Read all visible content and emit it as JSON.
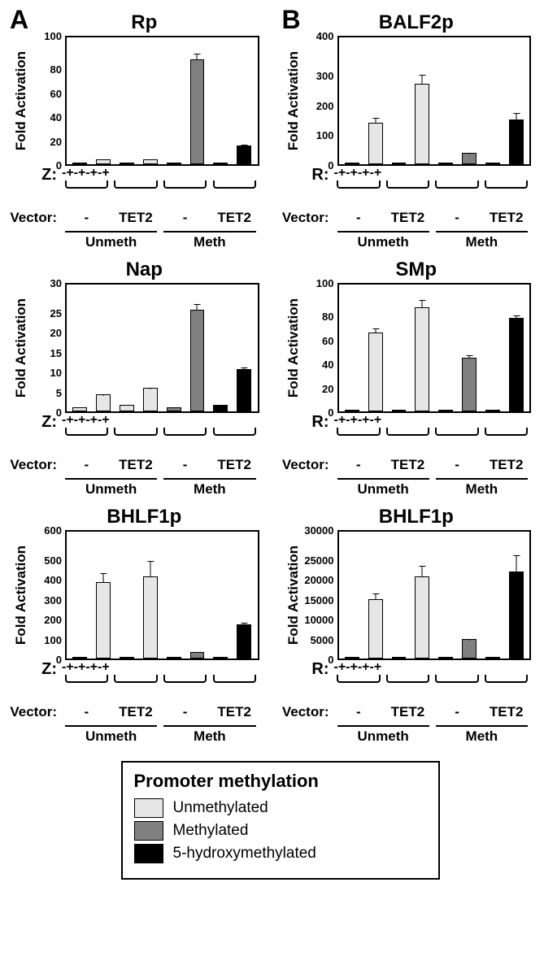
{
  "colors": {
    "unmeth": "#e6e6e6",
    "meth": "#808080",
    "hmc": "#000000",
    "border": "#000000",
    "bg": "#ffffff"
  },
  "legend": {
    "title": "Promoter methylation",
    "items": [
      {
        "label": "Unmethylated",
        "color_key": "unmeth"
      },
      {
        "label": "Methylated",
        "color_key": "meth"
      },
      {
        "label": "5-hydroxymethylated",
        "color_key": "hmc"
      }
    ]
  },
  "panel_labels": {
    "A": "A",
    "B": "B"
  },
  "axis_common": {
    "ylabel": "Fold Activation",
    "vector_label": "Vector:",
    "vector_levels": [
      "-",
      "TET2",
      "-",
      "TET2"
    ],
    "meth_levels": [
      "Unmeth",
      "Meth"
    ]
  },
  "charts": {
    "A": [
      {
        "title": "Rp",
        "stim_label": "Z:",
        "ymax": 100,
        "ticks": [
          100,
          80,
          60,
          40,
          20,
          0
        ],
        "bars": [
          {
            "v": 1,
            "e": 0.3,
            "c": "unmeth",
            "s": "-"
          },
          {
            "v": 4,
            "e": 0.5,
            "c": "unmeth",
            "s": "+"
          },
          {
            "v": 1,
            "e": 0.3,
            "c": "unmeth",
            "s": "-"
          },
          {
            "v": 4,
            "e": 0.5,
            "c": "unmeth",
            "s": "+"
          },
          {
            "v": 1,
            "e": 0.3,
            "c": "meth",
            "s": "-"
          },
          {
            "v": 83,
            "e": 5,
            "c": "meth",
            "s": "+"
          },
          {
            "v": 1,
            "e": 0.3,
            "c": "hmc",
            "s": "-"
          },
          {
            "v": 15,
            "e": 2,
            "c": "hmc",
            "s": "+"
          }
        ]
      },
      {
        "title": "Nap",
        "stim_label": "Z:",
        "ymax": 30,
        "ticks": [
          30,
          25,
          20,
          15,
          10,
          5,
          0
        ],
        "bars": [
          {
            "v": 1,
            "e": 0.3,
            "c": "unmeth",
            "s": "-"
          },
          {
            "v": 4,
            "e": 0.7,
            "c": "unmeth",
            "s": "+"
          },
          {
            "v": 1.5,
            "e": 0.3,
            "c": "unmeth",
            "s": "-"
          },
          {
            "v": 5.5,
            "e": 0.4,
            "c": "unmeth",
            "s": "+"
          },
          {
            "v": 1,
            "e": 0.3,
            "c": "meth",
            "s": "-"
          },
          {
            "v": 24,
            "e": 1.8,
            "c": "meth",
            "s": "+"
          },
          {
            "v": 1.5,
            "e": 0.3,
            "c": "hmc",
            "s": "-"
          },
          {
            "v": 10,
            "e": 1.2,
            "c": "hmc",
            "s": "+"
          }
        ]
      },
      {
        "title": "BHLF1p",
        "stim_label": "Z:",
        "ymax": 600,
        "ticks": [
          600,
          500,
          400,
          300,
          200,
          100,
          0
        ],
        "bars": [
          {
            "v": 2,
            "e": 1,
            "c": "unmeth",
            "s": "-"
          },
          {
            "v": 360,
            "e": 75,
            "c": "unmeth",
            "s": "+"
          },
          {
            "v": 3,
            "e": 1,
            "c": "unmeth",
            "s": "-"
          },
          {
            "v": 390,
            "e": 110,
            "c": "unmeth",
            "s": "+"
          },
          {
            "v": 2,
            "e": 1,
            "c": "meth",
            "s": "-"
          },
          {
            "v": 30,
            "e": 5,
            "c": "meth",
            "s": "+"
          },
          {
            "v": 2,
            "e": 1,
            "c": "hmc",
            "s": "-"
          },
          {
            "v": 160,
            "e": 40,
            "c": "hmc",
            "s": "+"
          }
        ]
      }
    ],
    "B": [
      {
        "title": "BALF2p",
        "stim_label": "R:",
        "ymax": 400,
        "ticks": [
          400,
          300,
          200,
          100,
          0
        ],
        "bars": [
          {
            "v": 2,
            "e": 1,
            "c": "unmeth",
            "s": "-"
          },
          {
            "v": 130,
            "e": 55,
            "c": "unmeth",
            "s": "+"
          },
          {
            "v": 2,
            "e": 1,
            "c": "unmeth",
            "s": "-"
          },
          {
            "v": 255,
            "e": 45,
            "c": "unmeth",
            "s": "+"
          },
          {
            "v": 2,
            "e": 1,
            "c": "meth",
            "s": "-"
          },
          {
            "v": 35,
            "e": 5,
            "c": "meth",
            "s": "+"
          },
          {
            "v": 2,
            "e": 1,
            "c": "hmc",
            "s": "-"
          },
          {
            "v": 140,
            "e": 65,
            "c": "hmc",
            "s": "+"
          }
        ]
      },
      {
        "title": "SMp",
        "stim_label": "R:",
        "ymax": 100,
        "ticks": [
          100,
          80,
          60,
          40,
          20,
          0
        ],
        "bars": [
          {
            "v": 1,
            "e": 0.3,
            "c": "unmeth",
            "s": "-"
          },
          {
            "v": 62,
            "e": 6,
            "c": "unmeth",
            "s": "+"
          },
          {
            "v": 1.5,
            "e": 0.3,
            "c": "unmeth",
            "s": "-"
          },
          {
            "v": 82,
            "e": 7,
            "c": "unmeth",
            "s": "+"
          },
          {
            "v": 1,
            "e": 0.3,
            "c": "meth",
            "s": "-"
          },
          {
            "v": 42,
            "e": 5,
            "c": "meth",
            "s": "+"
          },
          {
            "v": 1,
            "e": 0.3,
            "c": "hmc",
            "s": "-"
          },
          {
            "v": 74,
            "e": 2,
            "c": "hmc",
            "s": "+"
          }
        ]
      },
      {
        "title": "BHLF1p",
        "stim_label": "R:",
        "ymax": 30000,
        "ticks": [
          30000,
          25000,
          20000,
          15000,
          10000,
          5000,
          0
        ],
        "bars": [
          {
            "v": 50,
            "e": 20,
            "c": "unmeth",
            "s": "-"
          },
          {
            "v": 14000,
            "e": 3000,
            "c": "unmeth",
            "s": "+"
          },
          {
            "v": 80,
            "e": 30,
            "c": "unmeth",
            "s": "-"
          },
          {
            "v": 19500,
            "e": 3800,
            "c": "unmeth",
            "s": "+"
          },
          {
            "v": 30,
            "e": 10,
            "c": "meth",
            "s": "-"
          },
          {
            "v": 4600,
            "e": 300,
            "c": "meth",
            "s": "+"
          },
          {
            "v": 50,
            "e": 20,
            "c": "hmc",
            "s": "-"
          },
          {
            "v": 20500,
            "e": 6000,
            "c": "hmc",
            "s": "+"
          }
        ]
      }
    ]
  }
}
